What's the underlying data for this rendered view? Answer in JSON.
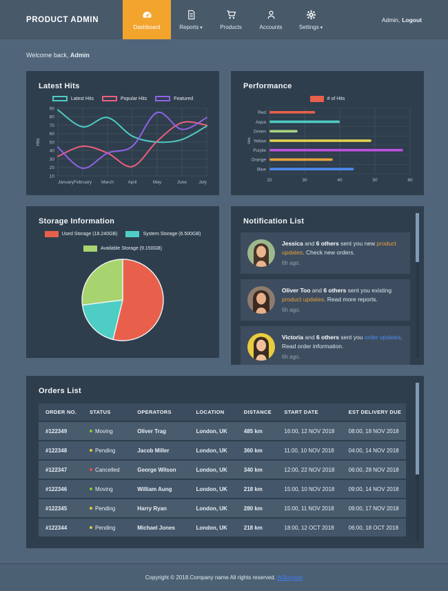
{
  "header": {
    "brand": "PRODUCT ADMIN",
    "nav": [
      {
        "label": "Dashboard",
        "icon": "speedometer-icon",
        "active": true
      },
      {
        "label": "Reports",
        "icon": "report-file-icon",
        "caret": true
      },
      {
        "label": "Products",
        "icon": "cart-icon"
      },
      {
        "label": "Accounts",
        "icon": "person-icon"
      },
      {
        "label": "Settings",
        "icon": "gear-icon",
        "caret": true
      }
    ],
    "admin_label": "Admin,",
    "logout_label": "Logout"
  },
  "welcome": {
    "prefix": "Welcome back,",
    "user": "Admin"
  },
  "colors": {
    "accent_orange": "#f2a42d",
    "navbar": "#48596a",
    "page_bg": "#51657a",
    "panel_bg": "#2f3e4d",
    "status_moving": "#7ed321",
    "status_pending": "#e8c73d",
    "status_cancelled": "#e85454",
    "link_orange": "#e9a13b",
    "link_blue": "#4f8df5"
  },
  "chart_data": [
    {
      "type": "line",
      "title": "Latest Hits",
      "ylabel": "Hits",
      "ylim": [
        10,
        90
      ],
      "ytick_step": 10,
      "grid": true,
      "legend_position": "top",
      "categories": [
        "January",
        "February",
        "March",
        "April",
        "May",
        "June",
        "July"
      ],
      "series": [
        {
          "name": "Latest Hits",
          "color": "#4ecdc4",
          "values": [
            88,
            68,
            79,
            57,
            50,
            53,
            69
          ]
        },
        {
          "name": "Popular Hits",
          "color": "#ed5f7e",
          "values": [
            33,
            45,
            37,
            21,
            51,
            73,
            70
          ]
        },
        {
          "name": "Featured",
          "color": "#8f63e8",
          "values": [
            44,
            19,
            37,
            45,
            85,
            65,
            79
          ]
        }
      ]
    },
    {
      "type": "bar",
      "orientation": "horizontal",
      "title": "Performance",
      "legend": "# of Hits",
      "legend_color": "#e8604c",
      "ylabel": "Hits",
      "xlim": [
        20,
        60
      ],
      "xticks": [
        20,
        30,
        40,
        50,
        60
      ],
      "grid": true,
      "categories": [
        "Red",
        "Aqua",
        "Green",
        "Yellow",
        "Purple",
        "Orange",
        "Blue"
      ],
      "values": [
        33,
        40,
        28,
        49,
        58,
        38,
        44
      ],
      "bar_colors": [
        "#e8604c",
        "#4ecdc4",
        "#a8d582",
        "#e8d44d",
        "#bb52e0",
        "#e8a23d",
        "#4d8af0"
      ]
    },
    {
      "type": "pie",
      "title": "Storage Information",
      "labels": [
        "Used Storage (18.240GB)",
        "System Storage (6.500GB)",
        "Available Storage (9.150GB)"
      ],
      "values": [
        18.24,
        6.5,
        9.15
      ],
      "colors": [
        "#e8604c",
        "#4ecdc4",
        "#a8d46f"
      ],
      "legend_position": "top"
    }
  ],
  "notifications": {
    "title": "Notification List",
    "items": [
      {
        "name": "Jessica",
        "and": " and ",
        "others": "6 others",
        "mid": " sent you new ",
        "link": "product updates",
        "link_color": "#e9a13b",
        "tail": ". Check new orders.",
        "time": "6h ago.",
        "avatar_bg": "#9cb98e",
        "hair": "#4a3328",
        "skin": "#e8b58e"
      },
      {
        "name": "Oliver Too",
        "and": " and ",
        "others": "6 others",
        "mid": " sent you existing ",
        "link": "product updates",
        "link_color": "#e9a13b",
        "tail": ". Read more reports.",
        "time": "6h ago.",
        "avatar_bg": "#8d7b6d",
        "hair": "#3c2a20",
        "skin": "#e6b08a"
      },
      {
        "name": "Victoria",
        "and": " and ",
        "others": "6 others",
        "mid": " sent you ",
        "link": "order updates",
        "link_color": "#4f8df5",
        "tail": ". Read order information.",
        "time": "6h ago.",
        "avatar_bg": "#e9cb3f",
        "hair": "#3a2b24",
        "skin": "#efc09a"
      }
    ]
  },
  "orders": {
    "title": "Orders List",
    "columns": [
      "ORDER NO.",
      "STATUS",
      "OPERATORS",
      "LOCATION",
      "DISTANCE",
      "START DATE",
      "EST DELIVERY DUE"
    ],
    "rows": [
      {
        "no": "#122349",
        "status": "Moving",
        "status_color": "#7ed321",
        "operator": "Oliver Trag",
        "location": "London, UK",
        "distance": "485 km",
        "start": "16:00, 12 NOV 2018",
        "due": "08:00, 18 NOV 2018"
      },
      {
        "no": "#122348",
        "status": "Pending",
        "status_color": "#e8c73d",
        "operator": "Jacob Miller",
        "location": "London, UK",
        "distance": "360 km",
        "start": "11:00, 10 NOV 2018",
        "due": "04:00, 14 NOV 2018"
      },
      {
        "no": "#122347",
        "status": "Cancelled",
        "status_color": "#e85454",
        "operator": "George Wilson",
        "location": "London, UK",
        "distance": "340 km",
        "start": "12:00, 22 NOV 2018",
        "due": "06:00, 28 NOV 2018"
      },
      {
        "no": "#122346",
        "status": "Moving",
        "status_color": "#7ed321",
        "operator": "William Aung",
        "location": "London, UK",
        "distance": "218 km",
        "start": "15:00, 10 NOV 2018",
        "due": "09:00, 14 NOV 2018"
      },
      {
        "no": "#122345",
        "status": "Pending",
        "status_color": "#e8c73d",
        "operator": "Harry Ryan",
        "location": "London, UK",
        "distance": "280 km",
        "start": "15:00, 11 NOV 2018",
        "due": "09:00, 17 NOV 2018"
      },
      {
        "no": "#122344",
        "status": "Pending",
        "status_color": "#e8c73d",
        "operator": "Michael Jones",
        "location": "London, UK",
        "distance": "218 km",
        "start": "18:00, 12 OCT 2018",
        "due": "06:00, 18 OCT 2018"
      }
    ]
  },
  "footer": {
    "copyright": "Copyright © 2018.Company name All rights reserved.",
    "link": "W3layouts"
  }
}
